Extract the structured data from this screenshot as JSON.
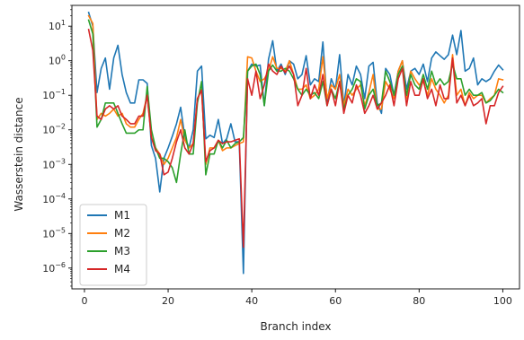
{
  "chart_data": {
    "type": "line",
    "title": "",
    "xlabel": "Branch index",
    "ylabel": "Wasserstein distance",
    "xlim": [
      -3,
      104
    ],
    "ylim": [
      2.5e-07,
      40
    ],
    "yscale": "log",
    "grid": false,
    "legend_position": "lower-left",
    "xticks": [
      0,
      20,
      40,
      60,
      80,
      100
    ],
    "yticks": [
      {
        "value": 1e-06,
        "base": "10",
        "exp": "−6"
      },
      {
        "value": 1e-05,
        "base": "10",
        "exp": "−5"
      },
      {
        "value": 0.0001,
        "base": "10",
        "exp": "−4"
      },
      {
        "value": 0.001,
        "base": "10",
        "exp": "−3"
      },
      {
        "value": 0.01,
        "base": "10",
        "exp": "−2"
      },
      {
        "value": 0.1,
        "base": "10",
        "exp": "−1"
      },
      {
        "value": 1,
        "base": "10",
        "exp": "0"
      },
      {
        "value": 10,
        "base": "10",
        "exp": "1"
      }
    ],
    "series": [
      {
        "name": "M1",
        "color": "#1f77b4",
        "x": [
          1,
          2,
          3,
          4,
          5,
          6,
          7,
          8,
          9,
          10,
          11,
          12,
          13,
          14,
          15,
          16,
          17,
          18,
          19,
          20,
          21,
          22,
          23,
          24,
          25,
          26,
          27,
          28,
          29,
          30,
          31,
          32,
          33,
          34,
          35,
          36,
          37,
          38,
          39,
          40,
          41,
          42,
          43,
          44,
          45,
          46,
          47,
          48,
          49,
          50,
          51,
          52,
          53,
          54,
          55,
          56,
          57,
          58,
          59,
          60,
          61,
          62,
          63,
          64,
          65,
          66,
          67,
          68,
          69,
          70,
          71,
          72,
          73,
          74,
          75,
          76,
          77,
          78,
          79,
          80,
          81,
          82,
          83,
          84,
          85,
          86,
          87,
          88,
          89,
          90,
          91,
          92,
          93,
          94,
          95,
          96,
          97,
          98,
          99,
          100
        ],
        "y": [
          25,
          10,
          0.12,
          0.6,
          1.2,
          0.15,
          1.2,
          2.8,
          0.4,
          0.12,
          0.06,
          0.06,
          0.28,
          0.28,
          0.22,
          0.0035,
          0.0015,
          0.00016,
          0.0015,
          0.003,
          0.0065,
          0.015,
          0.045,
          0.006,
          0.003,
          0.01,
          0.5,
          0.7,
          0.0055,
          0.007,
          0.006,
          0.02,
          0.004,
          0.0055,
          0.015,
          0.0045,
          0.0045,
          7e-07,
          0.5,
          0.8,
          0.7,
          0.75,
          0.05,
          1.1,
          3.8,
          0.5,
          0.8,
          0.4,
          1.0,
          0.8,
          0.3,
          0.4,
          1.4,
          0.2,
          0.3,
          0.25,
          3.5,
          0.06,
          0.3,
          0.15,
          1.5,
          0.05,
          0.4,
          0.2,
          0.7,
          0.4,
          0.08,
          0.7,
          0.9,
          0.06,
          0.03,
          0.6,
          0.4,
          0.1,
          0.5,
          1.0,
          0.15,
          0.5,
          0.6,
          0.4,
          0.8,
          0.25,
          1.2,
          1.8,
          1.4,
          1.1,
          1.5,
          5.5,
          1.5,
          7.5,
          0.5,
          0.6,
          1.2,
          0.2,
          0.3,
          0.25,
          0.3,
          0.5,
          0.75,
          0.55
        ]
      },
      {
        "name": "M2",
        "color": "#ff7f0e",
        "x": [
          1,
          2,
          3,
          4,
          5,
          6,
          7,
          8,
          9,
          10,
          11,
          12,
          13,
          14,
          15,
          16,
          17,
          18,
          19,
          20,
          21,
          22,
          23,
          24,
          25,
          26,
          27,
          28,
          29,
          30,
          31,
          32,
          33,
          34,
          35,
          36,
          37,
          38,
          39,
          40,
          41,
          42,
          43,
          44,
          45,
          46,
          47,
          48,
          49,
          50,
          51,
          52,
          53,
          54,
          55,
          56,
          57,
          58,
          59,
          60,
          61,
          62,
          63,
          64,
          65,
          66,
          67,
          68,
          69,
          70,
          71,
          72,
          73,
          74,
          75,
          76,
          77,
          78,
          79,
          80,
          81,
          82,
          83,
          84,
          85,
          86,
          87,
          88,
          89,
          90,
          91,
          92,
          93,
          94,
          95,
          96,
          97,
          98,
          99,
          100
        ],
        "y": [
          20,
          12,
          0.02,
          0.03,
          0.025,
          0.03,
          0.04,
          0.025,
          0.03,
          0.015,
          0.012,
          0.012,
          0.02,
          0.03,
          0.1,
          0.006,
          0.003,
          0.002,
          0.001,
          0.0015,
          0.003,
          0.006,
          0.02,
          0.005,
          0.003,
          0.004,
          0.08,
          0.15,
          0.001,
          0.003,
          0.003,
          0.005,
          0.0025,
          0.003,
          0.003,
          0.0035,
          0.004,
          0.0045,
          1.3,
          1.2,
          0.5,
          0.25,
          0.3,
          0.5,
          1.3,
          0.6,
          0.6,
          0.5,
          1.0,
          0.4,
          0.15,
          0.15,
          0.2,
          0.08,
          0.1,
          0.15,
          1.3,
          0.08,
          0.2,
          0.15,
          0.4,
          0.05,
          0.15,
          0.1,
          0.15,
          0.2,
          0.05,
          0.12,
          0.4,
          0.04,
          0.04,
          0.25,
          0.15,
          0.08,
          0.5,
          1.0,
          0.08,
          0.5,
          0.3,
          0.2,
          0.25,
          0.1,
          0.3,
          0.15,
          0.1,
          0.06,
          0.1,
          1.5,
          0.1,
          0.15,
          0.05,
          0.12,
          0.08,
          0.1,
          0.1,
          0.06,
          0.08,
          0.1,
          0.3,
          0.28
        ]
      },
      {
        "name": "M3",
        "color": "#2ca02c",
        "x": [
          1,
          2,
          3,
          4,
          5,
          6,
          7,
          8,
          9,
          10,
          11,
          12,
          13,
          14,
          15,
          16,
          17,
          18,
          19,
          20,
          21,
          22,
          23,
          24,
          25,
          26,
          27,
          28,
          29,
          30,
          31,
          32,
          33,
          34,
          35,
          36,
          37,
          38,
          39,
          40,
          41,
          42,
          43,
          44,
          45,
          46,
          47,
          48,
          49,
          50,
          51,
          52,
          53,
          54,
          55,
          56,
          57,
          58,
          59,
          60,
          61,
          62,
          63,
          64,
          65,
          66,
          67,
          68,
          69,
          70,
          71,
          72,
          73,
          74,
          75,
          76,
          77,
          78,
          79,
          80,
          81,
          82,
          83,
          84,
          85,
          86,
          87,
          88,
          89,
          90,
          91,
          92,
          93,
          94,
          95,
          96,
          97,
          98,
          99,
          100
        ],
        "y": [
          15,
          6,
          0.012,
          0.02,
          0.06,
          0.06,
          0.06,
          0.03,
          0.015,
          0.008,
          0.008,
          0.008,
          0.01,
          0.01,
          0.18,
          0.01,
          0.003,
          0.0015,
          0.0015,
          0.0012,
          0.0008,
          0.0003,
          0.002,
          0.01,
          0.002,
          0.002,
          0.06,
          0.25,
          0.0005,
          0.002,
          0.002,
          0.005,
          0.003,
          0.005,
          0.003,
          0.004,
          0.0045,
          0.006,
          0.5,
          0.7,
          0.8,
          0.4,
          0.05,
          0.5,
          0.75,
          0.5,
          0.5,
          0.6,
          0.5,
          0.3,
          0.15,
          0.1,
          0.15,
          0.1,
          0.12,
          0.08,
          0.25,
          0.05,
          0.15,
          0.08,
          0.25,
          0.04,
          0.1,
          0.15,
          0.3,
          0.25,
          0.04,
          0.1,
          0.15,
          0.05,
          0.06,
          0.5,
          0.25,
          0.1,
          0.4,
          0.7,
          0.1,
          0.4,
          0.2,
          0.15,
          0.4,
          0.15,
          0.5,
          0.2,
          0.3,
          0.2,
          0.25,
          0.8,
          0.3,
          0.3,
          0.1,
          0.15,
          0.1,
          0.1,
          0.12,
          0.06,
          0.07,
          0.1,
          0.15,
          0.12
        ]
      },
      {
        "name": "M4",
        "color": "#d62728",
        "x": [
          1,
          2,
          3,
          4,
          5,
          6,
          7,
          8,
          9,
          10,
          11,
          12,
          13,
          14,
          15,
          16,
          17,
          18,
          19,
          20,
          21,
          22,
          23,
          24,
          25,
          26,
          27,
          28,
          29,
          30,
          31,
          32,
          33,
          34,
          35,
          36,
          37,
          38,
          39,
          40,
          41,
          42,
          43,
          44,
          45,
          46,
          47,
          48,
          49,
          50,
          51,
          52,
          53,
          54,
          55,
          56,
          57,
          58,
          59,
          60,
          61,
          62,
          63,
          64,
          65,
          66,
          67,
          68,
          69,
          70,
          71,
          72,
          73,
          74,
          75,
          76,
          77,
          78,
          79,
          80,
          81,
          82,
          83,
          84,
          85,
          86,
          87,
          88,
          89,
          90,
          91,
          92,
          93,
          94,
          95,
          96,
          97,
          98,
          99,
          100
        ],
        "y": [
          8,
          2,
          0.025,
          0.02,
          0.04,
          0.05,
          0.04,
          0.05,
          0.025,
          0.02,
          0.015,
          0.015,
          0.025,
          0.025,
          0.1,
          0.006,
          0.0025,
          0.002,
          0.0005,
          0.0006,
          0.0015,
          0.0045,
          0.01,
          0.003,
          0.002,
          0.004,
          0.08,
          0.14,
          0.0012,
          0.0025,
          0.003,
          0.005,
          0.004,
          0.0045,
          0.0045,
          0.005,
          0.0055,
          4e-06,
          0.3,
          0.1,
          0.5,
          0.08,
          0.2,
          0.8,
          0.5,
          0.4,
          0.7,
          0.45,
          0.7,
          0.4,
          0.05,
          0.1,
          0.6,
          0.08,
          0.2,
          0.1,
          0.4,
          0.05,
          0.15,
          0.05,
          0.25,
          0.03,
          0.1,
          0.06,
          0.2,
          0.1,
          0.03,
          0.05,
          0.1,
          0.04,
          0.06,
          0.1,
          0.2,
          0.05,
          0.3,
          0.6,
          0.05,
          0.25,
          0.1,
          0.1,
          0.3,
          0.08,
          0.15,
          0.05,
          0.2,
          0.08,
          0.08,
          1.2,
          0.06,
          0.1,
          0.05,
          0.1,
          0.05,
          0.06,
          0.08,
          0.015,
          0.05,
          0.05,
          0.12,
          0.18
        ]
      }
    ]
  }
}
